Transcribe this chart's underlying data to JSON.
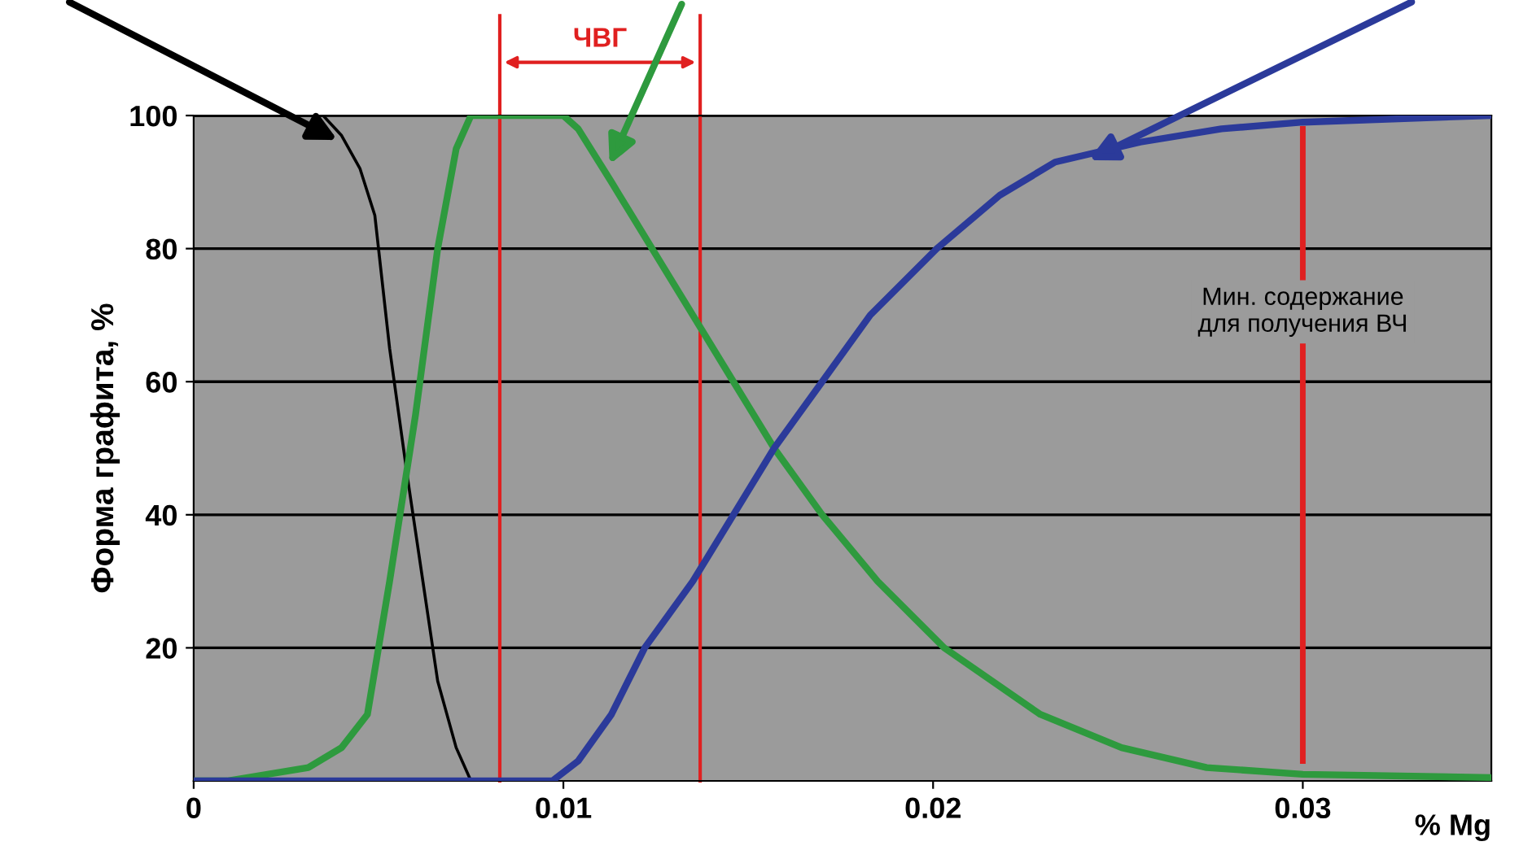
{
  "chart_data": {
    "type": "line",
    "ylabel": "Форма графита, %",
    "xlabel": "% Mg",
    "xlim": [
      0,
      0.0351
    ],
    "xticks": [
      0,
      0.01,
      0.02,
      0.03
    ],
    "ylim": [
      0,
      100
    ],
    "yticks": [
      20,
      40,
      60,
      80,
      100
    ],
    "grid": "y",
    "legend": false,
    "marker": "none",
    "line_style": "solid",
    "series": [
      {
        "color": "#000000",
        "x": [
          0,
          0.0035,
          0.004,
          0.0045,
          0.0049,
          0.0053,
          0.0058,
          0.0062,
          0.0066,
          0.0071,
          0.0075,
          0.008,
          0.0082
        ],
        "values": [
          100,
          100,
          97,
          92,
          85,
          65,
          45,
          30,
          15,
          5,
          0,
          0,
          0
        ]
      },
      {
        "color": "#2e9a3e",
        "x": [
          0,
          0.0009,
          0.0031,
          0.004,
          0.0047,
          0.0053,
          0.006,
          0.0066,
          0.0071,
          0.0075,
          0.008,
          0.01,
          0.0104,
          0.0113,
          0.0124,
          0.0135,
          0.0146,
          0.0157,
          0.017,
          0.0185,
          0.0203,
          0.0229,
          0.0251,
          0.0274,
          0.03,
          0.0351
        ],
        "values": [
          0,
          0,
          2,
          5,
          10,
          30,
          55,
          80,
          95,
          100,
          100,
          100,
          98,
          90,
          80,
          70,
          60,
          50,
          40,
          30,
          20,
          10,
          5,
          2,
          1,
          0.5
        ]
      },
      {
        "color": "#2b3a9a",
        "x": [
          0,
          0.0097,
          0.0104,
          0.0113,
          0.0122,
          0.0135,
          0.0146,
          0.0157,
          0.017,
          0.0183,
          0.0201,
          0.0218,
          0.0233,
          0.0256,
          0.0278,
          0.03,
          0.0351
        ],
        "values": [
          0,
          0,
          3,
          10,
          20,
          30,
          40,
          50,
          60,
          70,
          80,
          88,
          93,
          96,
          98,
          99,
          100
        ]
      }
    ],
    "annotations": [
      "ЧВГ"
    ],
    "ref_lines": [
      {
        "axis": "x",
        "value": 0.00828,
        "label": null,
        "color": "#e02020"
      },
      {
        "axis": "x",
        "value": 0.0137,
        "label": null,
        "color": "#e02020"
      },
      {
        "axis": "x",
        "value": 0.03,
        "label": "Мин. содержание\nдля получения ВЧ",
        "color": "#e02020"
      }
    ]
  }
}
